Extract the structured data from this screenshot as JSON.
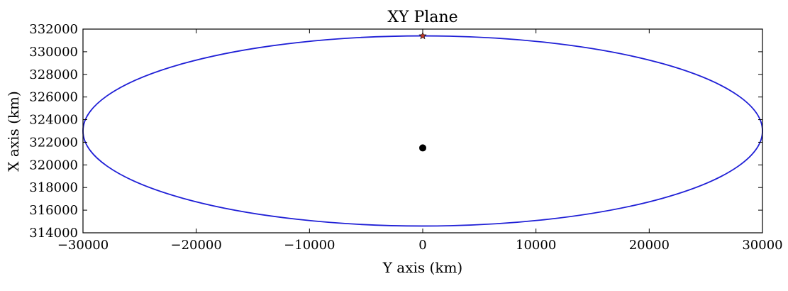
{
  "chart_data": {
    "type": "line",
    "title": "XY Plane",
    "xlabel": "Y axis (km)",
    "ylabel": "X axis (km)",
    "xlim": [
      -30000,
      30000
    ],
    "ylim": [
      314000,
      332000
    ],
    "xticks": [
      -30000,
      -20000,
      -10000,
      0,
      10000,
      20000,
      30000
    ],
    "yticks": [
      314000,
      316000,
      318000,
      320000,
      322000,
      324000,
      326000,
      328000,
      330000,
      332000
    ],
    "xtick_labels": [
      "−30000",
      "−20000",
      "−10000",
      "0",
      "10000",
      "20000",
      "30000"
    ],
    "ytick_labels": [
      "314000",
      "316000",
      "318000",
      "320000",
      "322000",
      "324000",
      "326000",
      "328000",
      "330000",
      "332000"
    ],
    "grid": false,
    "series": [
      {
        "kind": "ellipse",
        "color": "#1f1fd6",
        "center": [
          0,
          323000
        ],
        "semi_axis_x": 30000,
        "semi_axis_y": 8400
      },
      {
        "kind": "point",
        "marker": "dot",
        "color": "#000000",
        "x": 0,
        "y": 321500
      },
      {
        "kind": "point",
        "marker": "star",
        "color": "#c0392b",
        "x": 0,
        "y": 331400
      }
    ]
  }
}
